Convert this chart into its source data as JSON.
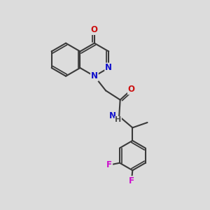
{
  "background_color": "#dcdcdc",
  "bond_color": "#3a3a3a",
  "bond_width": 1.5,
  "atom_colors": {
    "N": "#1010cc",
    "O": "#cc1010",
    "F": "#cc10cc",
    "H": "#505050"
  },
  "font_size": 8.5
}
